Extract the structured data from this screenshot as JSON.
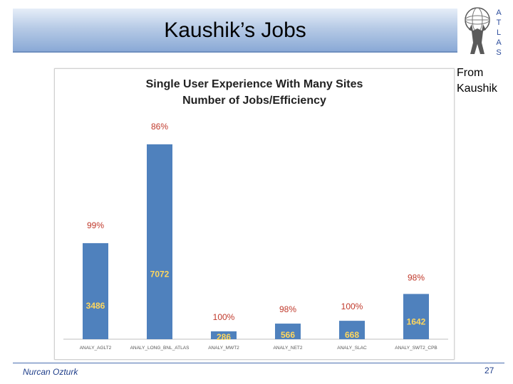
{
  "slide": {
    "title": "Kaushik’s Jobs",
    "note_line1": "From",
    "note_line2": "Kaushik",
    "author": "Nurcan Ozturk",
    "page_number": "27",
    "logo_letters": [
      "A",
      "T",
      "L",
      "A",
      "S"
    ]
  },
  "chart_data": {
    "type": "bar",
    "title_line1": "Single User Experience With Many Sites",
    "title_line2": "Number of Jobs/Efficiency",
    "categories": [
      "ANALY_AGLT2",
      "ANALY_LONG_BNL_ATLAS",
      "ANALY_MWT2",
      "ANALY_NET2",
      "ANALY_SLAC",
      "ANALY_SWT2_CPB"
    ],
    "values": [
      3486,
      7072,
      286,
      566,
      668,
      1642
    ],
    "efficiency_labels": [
      "99%",
      "86%",
      "100%",
      "98%",
      "100%",
      "98%"
    ],
    "ylim": [
      0,
      8000
    ],
    "grid": false,
    "colors": {
      "bar": "#4f81bd",
      "value_label": "#ffd75e",
      "efficiency_label": "#c0392b"
    }
  }
}
